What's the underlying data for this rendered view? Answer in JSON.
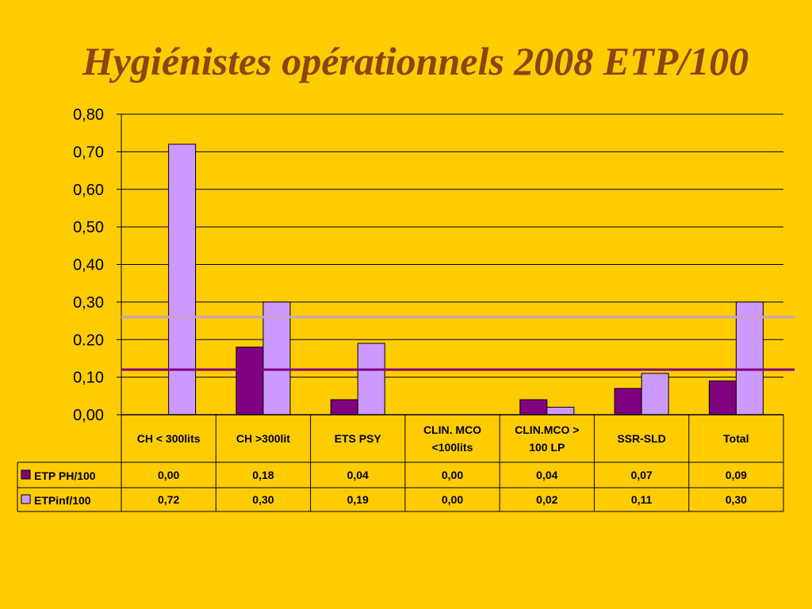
{
  "title": "Hygiénistes opérationnels 2008 ETP/100",
  "chart_data": {
    "type": "bar",
    "categories": [
      [
        "CH < 300lits"
      ],
      [
        "CH >300lit"
      ],
      [
        "ETS PSY"
      ],
      [
        "CLIN. MCO",
        "<100lits"
      ],
      [
        "CLIN.MCO >",
        "100 LP"
      ],
      [
        "SSR-SLD"
      ],
      [
        "Total"
      ]
    ],
    "series": [
      {
        "name": "ETP PH/100",
        "color": "#800080",
        "values": [
          0.0,
          0.18,
          0.04,
          0.0,
          0.04,
          0.07,
          0.09
        ],
        "labels": [
          "0,00",
          "0,18",
          "0,04",
          "0,00",
          "0,04",
          "0,07",
          "0,09"
        ]
      },
      {
        "name": "ETPinf/100",
        "color": "#CC99FF",
        "values": [
          0.72,
          0.3,
          0.19,
          0.0,
          0.02,
          0.11,
          0.3
        ],
        "labels": [
          "0,72",
          "0,30",
          "0,19",
          "0,00",
          "0,02",
          "0,11",
          "0,30"
        ]
      }
    ],
    "ylim": [
      0,
      0.8
    ],
    "yticks": [
      "0,00",
      "0,10",
      "0.20",
      "0,30",
      "0,40",
      "0,50",
      "0,60",
      "0,70",
      "0,80"
    ],
    "reference_lines": [
      {
        "value": 0.26,
        "color": "#C8A2C8"
      },
      {
        "value": 0.12,
        "color": "#800080"
      }
    ],
    "grid": true,
    "legend": "data-table"
  }
}
